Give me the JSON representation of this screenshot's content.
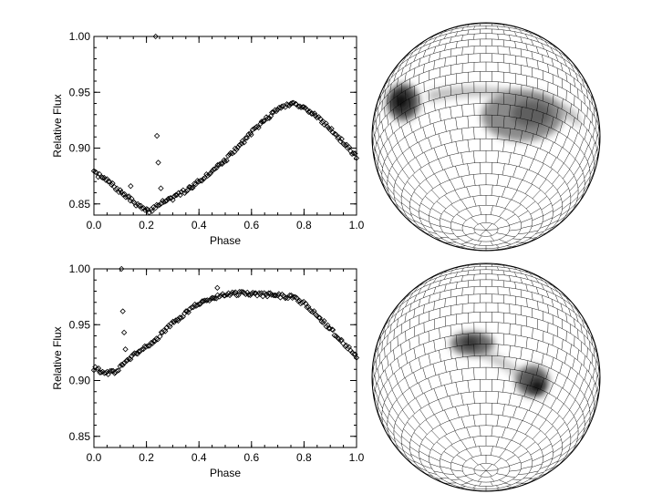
{
  "chart_data": [
    {
      "type": "scatter",
      "marker": "diamond-open",
      "xlabel": "Phase",
      "ylabel": "Relative Flux",
      "xlim": [
        0.0,
        1.0
      ],
      "ylim": [
        0.84,
        1.0
      ],
      "xticks": [
        "0.0",
        "0.2",
        "0.4",
        "0.6",
        "0.8",
        "1.0"
      ],
      "yticks": [
        "0.85",
        "0.90",
        "0.95",
        "1.00"
      ],
      "key_points": [
        [
          0.0,
          0.878
        ],
        [
          0.05,
          0.871
        ],
        [
          0.1,
          0.861
        ],
        [
          0.15,
          0.852
        ],
        [
          0.19,
          0.845
        ],
        [
          0.21,
          0.843
        ],
        [
          0.26,
          0.852
        ],
        [
          0.3,
          0.855
        ],
        [
          0.35,
          0.862
        ],
        [
          0.4,
          0.87
        ],
        [
          0.45,
          0.88
        ],
        [
          0.5,
          0.889
        ],
        [
          0.55,
          0.901
        ],
        [
          0.6,
          0.914
        ],
        [
          0.65,
          0.925
        ],
        [
          0.7,
          0.935
        ],
        [
          0.75,
          0.94
        ],
        [
          0.8,
          0.937
        ],
        [
          0.85,
          0.928
        ],
        [
          0.9,
          0.917
        ],
        [
          0.95,
          0.905
        ],
        [
          1.0,
          0.892
        ]
      ],
      "outliers": [
        [
          0.14,
          0.866
        ],
        [
          0.24,
          0.911
        ],
        [
          0.245,
          0.887
        ],
        [
          0.255,
          0.864
        ],
        [
          0.235,
          1.0
        ]
      ]
    },
    {
      "type": "scatter",
      "marker": "diamond-open",
      "xlabel": "Phase",
      "ylabel": "Relative Flux",
      "xlim": [
        0.0,
        1.0
      ],
      "ylim": [
        0.84,
        1.0
      ],
      "xticks": [
        "0.0",
        "0.2",
        "0.4",
        "0.6",
        "0.8",
        "1.0"
      ],
      "yticks": [
        "0.85",
        "0.90",
        "0.95",
        "1.00"
      ],
      "key_points": [
        [
          0.0,
          0.911
        ],
        [
          0.03,
          0.908
        ],
        [
          0.05,
          0.907
        ],
        [
          0.08,
          0.908
        ],
        [
          0.1,
          0.912
        ],
        [
          0.12,
          0.918
        ],
        [
          0.15,
          0.922
        ],
        [
          0.2,
          0.93
        ],
        [
          0.25,
          0.94
        ],
        [
          0.3,
          0.951
        ],
        [
          0.35,
          0.961
        ],
        [
          0.4,
          0.969
        ],
        [
          0.45,
          0.974
        ],
        [
          0.5,
          0.977
        ],
        [
          0.55,
          0.978
        ],
        [
          0.6,
          0.977
        ],
        [
          0.65,
          0.977
        ],
        [
          0.7,
          0.976
        ],
        [
          0.75,
          0.975
        ],
        [
          0.8,
          0.969
        ],
        [
          0.85,
          0.958
        ],
        [
          0.9,
          0.946
        ],
        [
          0.95,
          0.934
        ],
        [
          1.0,
          0.922
        ]
      ],
      "outliers": [
        [
          0.11,
          0.962
        ],
        [
          0.115,
          0.943
        ],
        [
          0.12,
          0.928
        ],
        [
          0.105,
          1.0
        ],
        [
          0.47,
          0.983
        ]
      ]
    }
  ]
}
